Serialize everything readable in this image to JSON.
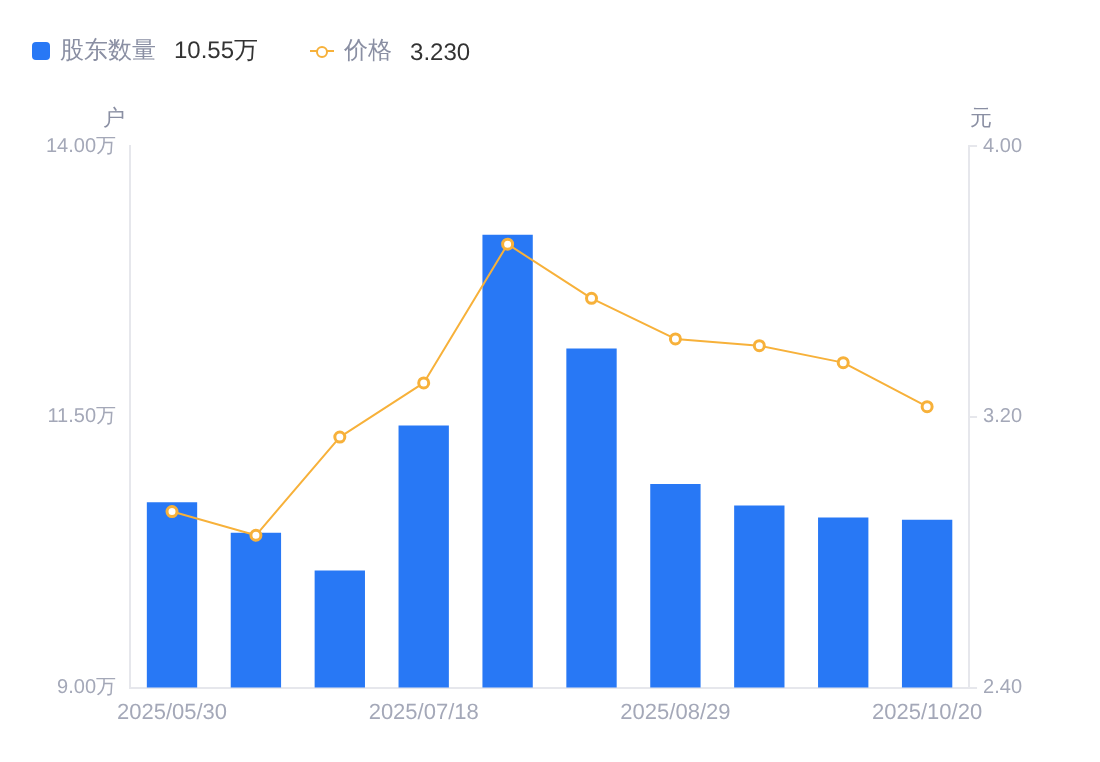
{
  "chart_data": {
    "type": "bar",
    "categories": [
      "2025/05/30",
      null,
      null,
      "2025/07/18",
      null,
      null,
      "2025/08/29",
      null,
      null,
      "2025/10/20"
    ],
    "series": [
      {
        "name": "股东数量",
        "color": "#2878f5",
        "values": [
          10.71,
          10.43,
          10.08,
          11.42,
          13.18,
          12.13,
          10.88,
          10.68,
          10.57,
          10.55
        ]
      },
      {
        "name": "价格",
        "type": "line",
        "axis": "y2",
        "color": "#f7b13a",
        "marker": "circle",
        "values": [
          2.92,
          2.85,
          3.14,
          3.3,
          3.71,
          3.55,
          3.43,
          3.41,
          3.36,
          3.23
        ]
      }
    ],
    "ylabel": "户",
    "y2label": "元",
    "ylim": [
      9,
      14
    ],
    "yticks": [
      {
        "value": 9,
        "label": "9.00万"
      },
      {
        "value": 11.5,
        "label": "11.50万"
      },
      {
        "value": 14,
        "label": "14.00万"
      }
    ],
    "y2lim": [
      2.4,
      4
    ],
    "y2ticks": [
      {
        "value": 2.4,
        "label": "2.40"
      },
      {
        "value": 3.2,
        "label": "3.20"
      },
      {
        "value": 4,
        "label": "4.00"
      }
    ],
    "annotations": [
      "10.55万",
      "3.230"
    ],
    "legend": "top left",
    "grid": false
  }
}
